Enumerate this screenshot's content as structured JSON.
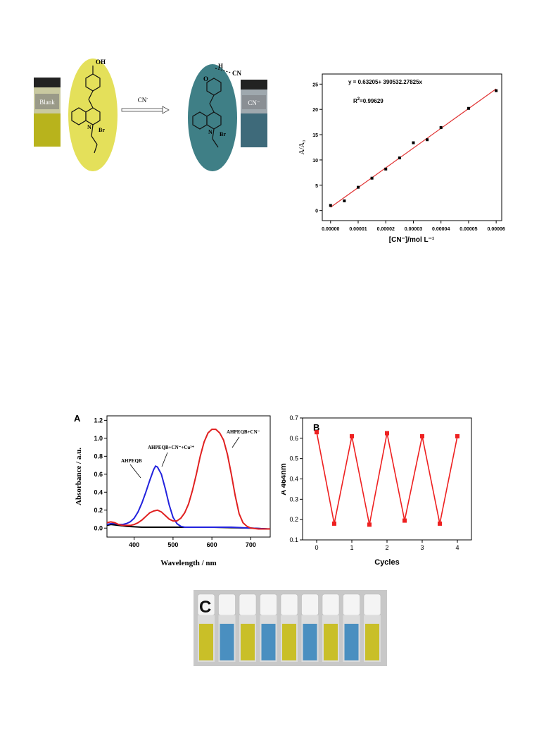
{
  "scheme": {
    "vial_left_label": "Blank",
    "vial_right_label": "CN⁻",
    "arrow_label": "CN",
    "arrow_label_sup": "-",
    "oh_label": "OH",
    "hcn_h": "H",
    "hcn_cn": "CN",
    "o_label": "O",
    "n_plus": "N",
    "br_label": "Br",
    "colors": {
      "yellow": "#e4e05a",
      "teal": "#3f7f86",
      "vial_yellow": "#b8b31c",
      "vial_blue": "#3e6a7a"
    }
  },
  "chart_data": [
    {
      "id": "linear-fit",
      "type": "scatter",
      "title": "",
      "equation": "y = 0.63205+ 390532.27825x",
      "r2_label": "R",
      "r2_sup": "2",
      "r2_value": "=0.99629",
      "xlabel": "[CN⁻]/mol L⁻¹",
      "ylabel": "A/A₀",
      "xlim": [
        -3e-06,
        6.2e-05
      ],
      "ylim": [
        -2,
        27
      ],
      "xticks": [
        0,
        1e-05,
        2e-05,
        3e-05,
        4e-05,
        5e-05,
        6e-05
      ],
      "xtick_labels": [
        "0.00000",
        "0.00001",
        "0.00002",
        "0.00003",
        "0.00004",
        "0.00005",
        "0.00006"
      ],
      "yticks": [
        0,
        5,
        10,
        15,
        20,
        25
      ],
      "ytick_labels": [
        "0",
        "5",
        "10",
        "15",
        "20",
        "25"
      ],
      "x": [
        0,
        5e-06,
        1e-05,
        1.5e-05,
        2e-05,
        2.5e-05,
        3e-05,
        3.5e-05,
        4e-05,
        5e-05,
        6e-05
      ],
      "y": [
        1.0,
        1.9,
        4.6,
        6.4,
        8.2,
        10.4,
        13.4,
        14.0,
        16.4,
        20.2,
        23.7
      ],
      "fit": {
        "intercept": 0.63205,
        "slope": 390532.27825
      },
      "colors": {
        "points": "#000000",
        "fit_line": "#e03030"
      }
    },
    {
      "id": "uv-vis",
      "type": "line",
      "panel_label": "A",
      "xlabel": "Wavelength / nm",
      "ylabel": "Absorbance / a.u.",
      "xlim": [
        330,
        750
      ],
      "ylim": [
        -0.1,
        1.25
      ],
      "xticks": [
        400,
        500,
        600,
        700
      ],
      "xtick_labels": [
        "400",
        "500",
        "600",
        "700"
      ],
      "yticks": [
        0,
        0.2,
        0.4,
        0.6,
        0.8,
        1.0,
        1.2
      ],
      "ytick_labels": [
        "0.0",
        "0.2",
        "0.4",
        "0.6",
        "0.8",
        "1.0",
        "1.2"
      ],
      "annotations": [
        "AHPEQB",
        "AHPEQB+CN⁻+Cu²⁺",
        "AHPEQB+CN⁻"
      ],
      "series": [
        {
          "color": "#000000",
          "x": [
            330,
            340,
            360,
            380,
            400,
            420,
            440,
            460,
            480,
            500,
            520,
            540,
            560,
            600,
            650,
            700,
            750
          ],
          "y": [
            0.03,
            0.04,
            0.03,
            0.02,
            0.015,
            0.01,
            0.01,
            0.01,
            0.01,
            0.01,
            0.01,
            0.01,
            0.01,
            0.01,
            0.005,
            0.0,
            -0.01
          ]
        },
        {
          "color": "#2222dd",
          "x": [
            330,
            340,
            350,
            360,
            370,
            380,
            390,
            400,
            410,
            420,
            430,
            440,
            450,
            455,
            460,
            470,
            480,
            490,
            500,
            510,
            520,
            530,
            540,
            560,
            600,
            650,
            700,
            750
          ],
          "y": [
            0.04,
            0.05,
            0.05,
            0.04,
            0.04,
            0.05,
            0.07,
            0.11,
            0.18,
            0.28,
            0.4,
            0.53,
            0.65,
            0.69,
            0.68,
            0.6,
            0.44,
            0.26,
            0.12,
            0.05,
            0.02,
            0.01,
            0.01,
            0.01,
            0.01,
            0.01,
            0.0,
            -0.01
          ]
        },
        {
          "color": "#e02020",
          "x": [
            330,
            340,
            350,
            360,
            370,
            380,
            390,
            400,
            410,
            420,
            430,
            440,
            450,
            460,
            470,
            480,
            490,
            500,
            510,
            520,
            530,
            540,
            550,
            560,
            570,
            580,
            590,
            600,
            610,
            620,
            630,
            640,
            650,
            660,
            670,
            680,
            690,
            700,
            720,
            750
          ],
          "y": [
            0.06,
            0.07,
            0.06,
            0.04,
            0.03,
            0.03,
            0.03,
            0.04,
            0.06,
            0.09,
            0.13,
            0.17,
            0.19,
            0.2,
            0.18,
            0.14,
            0.1,
            0.08,
            0.08,
            0.11,
            0.17,
            0.27,
            0.42,
            0.6,
            0.8,
            0.96,
            1.06,
            1.1,
            1.1,
            1.06,
            0.98,
            0.82,
            0.6,
            0.36,
            0.16,
            0.06,
            0.02,
            0.0,
            -0.01,
            -0.01
          ]
        }
      ]
    },
    {
      "id": "cycles",
      "type": "line",
      "panel_label": "B",
      "xlabel": "Cycles",
      "ylabel": "A 464nm",
      "xlim": [
        -0.4,
        4.4
      ],
      "ylim": [
        0.1,
        0.7
      ],
      "xticks": [
        0,
        1,
        2,
        3,
        4
      ],
      "xtick_labels": [
        "0",
        "1",
        "2",
        "3",
        "4"
      ],
      "yticks": [
        0.1,
        0.2,
        0.3,
        0.4,
        0.5,
        0.6,
        0.7
      ],
      "ytick_labels": [
        "0.1",
        "0.2",
        "0.3",
        "0.4",
        "0.5",
        "0.6",
        "0.7"
      ],
      "x": [
        0,
        0.5,
        1,
        1.5,
        2,
        2.5,
        3,
        3.5,
        4
      ],
      "y": [
        0.63,
        0.18,
        0.61,
        0.175,
        0.625,
        0.195,
        0.61,
        0.18,
        0.61
      ],
      "colors": {
        "line": "#ee2020"
      }
    }
  ],
  "vials": {
    "panel_label": "C",
    "colors": [
      "#c9bf28",
      "#4a8fc0",
      "#c9bf28",
      "#4a8fc0",
      "#c9bf28",
      "#4a8fc0",
      "#c9bf28",
      "#4a8fc0",
      "#c9bf28"
    ]
  }
}
